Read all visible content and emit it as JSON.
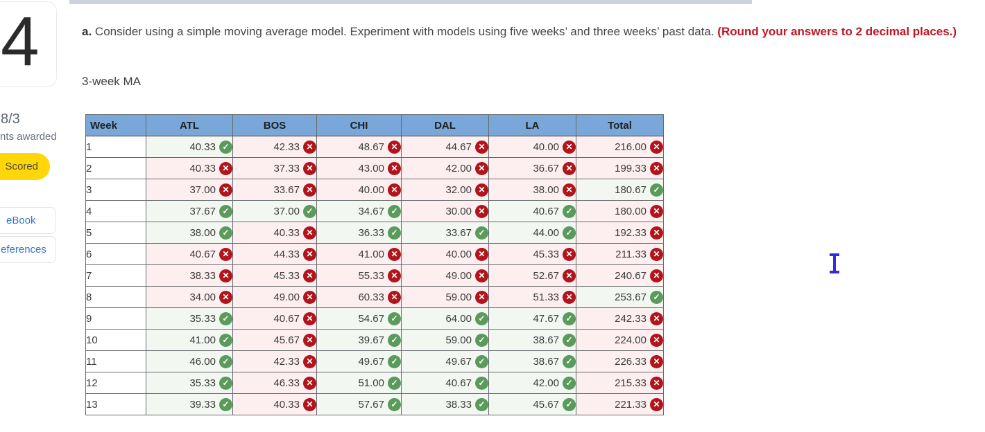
{
  "question": {
    "number": "4",
    "score_fraction": "8/3",
    "score_caption": "nts awarded",
    "status_badge": "Scored",
    "links": {
      "ebook": "eBook",
      "references": "eferences"
    }
  },
  "prompt": {
    "prefix": "a.",
    "body": " Consider using a simple moving average model. Experiment with models using five weeks’ and three weeks’ past data. ",
    "emphasis": "(Round your answers to 2 decimal places.)"
  },
  "section_label": "3-week MA",
  "icons": {
    "correct": "✓",
    "incorrect": "✕"
  },
  "colors": {
    "header_blue": "#79a7d9",
    "correct_green": "#5a9b5c",
    "incorrect_red": "#b2141b",
    "correct_cell_bg": "#f3f7f2",
    "incorrect_cell_bg": "#fdeff0",
    "badge_yellow": "#ffd608",
    "link_blue": "#3778c2",
    "emphasis_red": "#c01722",
    "table_header_text": "#1f1f1f"
  },
  "chart_data": {
    "type": "table",
    "title": "3-week MA",
    "columns": [
      "Week",
      "ATL",
      "BOS",
      "CHI",
      "DAL",
      "LA",
      "Total"
    ],
    "rows": [
      {
        "week": "1",
        "cells": [
          [
            "40.33",
            "correct"
          ],
          [
            "42.33",
            "incorrect"
          ],
          [
            "48.67",
            "incorrect"
          ],
          [
            "44.67",
            "incorrect"
          ],
          [
            "40.00",
            "incorrect"
          ],
          [
            "216.00",
            "incorrect"
          ]
        ]
      },
      {
        "week": "2",
        "cells": [
          [
            "40.33",
            "incorrect"
          ],
          [
            "37.33",
            "incorrect"
          ],
          [
            "43.00",
            "incorrect"
          ],
          [
            "42.00",
            "incorrect"
          ],
          [
            "36.67",
            "incorrect"
          ],
          [
            "199.33",
            "incorrect"
          ]
        ]
      },
      {
        "week": "3",
        "cells": [
          [
            "37.00",
            "incorrect"
          ],
          [
            "33.67",
            "incorrect"
          ],
          [
            "40.00",
            "incorrect"
          ],
          [
            "32.00",
            "incorrect"
          ],
          [
            "38.00",
            "incorrect"
          ],
          [
            "180.67",
            "correct"
          ]
        ]
      },
      {
        "week": "4",
        "cells": [
          [
            "37.67",
            "correct"
          ],
          [
            "37.00",
            "correct"
          ],
          [
            "34.67",
            "correct"
          ],
          [
            "30.00",
            "incorrect"
          ],
          [
            "40.67",
            "correct"
          ],
          [
            "180.00",
            "incorrect"
          ]
        ]
      },
      {
        "week": "5",
        "cells": [
          [
            "38.00",
            "correct"
          ],
          [
            "40.33",
            "incorrect"
          ],
          [
            "36.33",
            "correct"
          ],
          [
            "33.67",
            "correct"
          ],
          [
            "44.00",
            "correct"
          ],
          [
            "192.33",
            "incorrect"
          ]
        ]
      },
      {
        "week": "6",
        "cells": [
          [
            "40.67",
            "incorrect"
          ],
          [
            "44.33",
            "incorrect"
          ],
          [
            "41.00",
            "incorrect"
          ],
          [
            "40.00",
            "incorrect"
          ],
          [
            "45.33",
            "incorrect"
          ],
          [
            "211.33",
            "incorrect"
          ]
        ]
      },
      {
        "week": "7",
        "cells": [
          [
            "38.33",
            "incorrect"
          ],
          [
            "45.33",
            "incorrect"
          ],
          [
            "55.33",
            "incorrect"
          ],
          [
            "49.00",
            "incorrect"
          ],
          [
            "52.67",
            "incorrect"
          ],
          [
            "240.67",
            "incorrect"
          ]
        ]
      },
      {
        "week": "8",
        "cells": [
          [
            "34.00",
            "incorrect"
          ],
          [
            "49.00",
            "incorrect"
          ],
          [
            "60.33",
            "incorrect"
          ],
          [
            "59.00",
            "incorrect"
          ],
          [
            "51.33",
            "incorrect"
          ],
          [
            "253.67",
            "correct"
          ]
        ]
      },
      {
        "week": "9",
        "cells": [
          [
            "35.33",
            "correct"
          ],
          [
            "40.67",
            "incorrect"
          ],
          [
            "54.67",
            "correct"
          ],
          [
            "64.00",
            "correct"
          ],
          [
            "47.67",
            "correct"
          ],
          [
            "242.33",
            "incorrect"
          ]
        ]
      },
      {
        "week": "10",
        "cells": [
          [
            "41.00",
            "correct"
          ],
          [
            "45.67",
            "incorrect"
          ],
          [
            "39.67",
            "correct"
          ],
          [
            "59.00",
            "correct"
          ],
          [
            "38.67",
            "correct"
          ],
          [
            "224.00",
            "incorrect"
          ]
        ]
      },
      {
        "week": "11",
        "cells": [
          [
            "46.00",
            "correct"
          ],
          [
            "42.33",
            "incorrect"
          ],
          [
            "49.67",
            "correct"
          ],
          [
            "49.67",
            "correct"
          ],
          [
            "38.67",
            "correct"
          ],
          [
            "226.33",
            "incorrect"
          ]
        ]
      },
      {
        "week": "12",
        "cells": [
          [
            "35.33",
            "correct"
          ],
          [
            "46.33",
            "incorrect"
          ],
          [
            "51.00",
            "correct"
          ],
          [
            "40.67",
            "correct"
          ],
          [
            "42.00",
            "correct"
          ],
          [
            "215.33",
            "incorrect"
          ]
        ]
      },
      {
        "week": "13",
        "cells": [
          [
            "39.33",
            "correct"
          ],
          [
            "40.33",
            "incorrect"
          ],
          [
            "57.67",
            "correct"
          ],
          [
            "38.33",
            "correct"
          ],
          [
            "45.67",
            "correct"
          ],
          [
            "221.33",
            "incorrect"
          ]
        ]
      }
    ]
  }
}
